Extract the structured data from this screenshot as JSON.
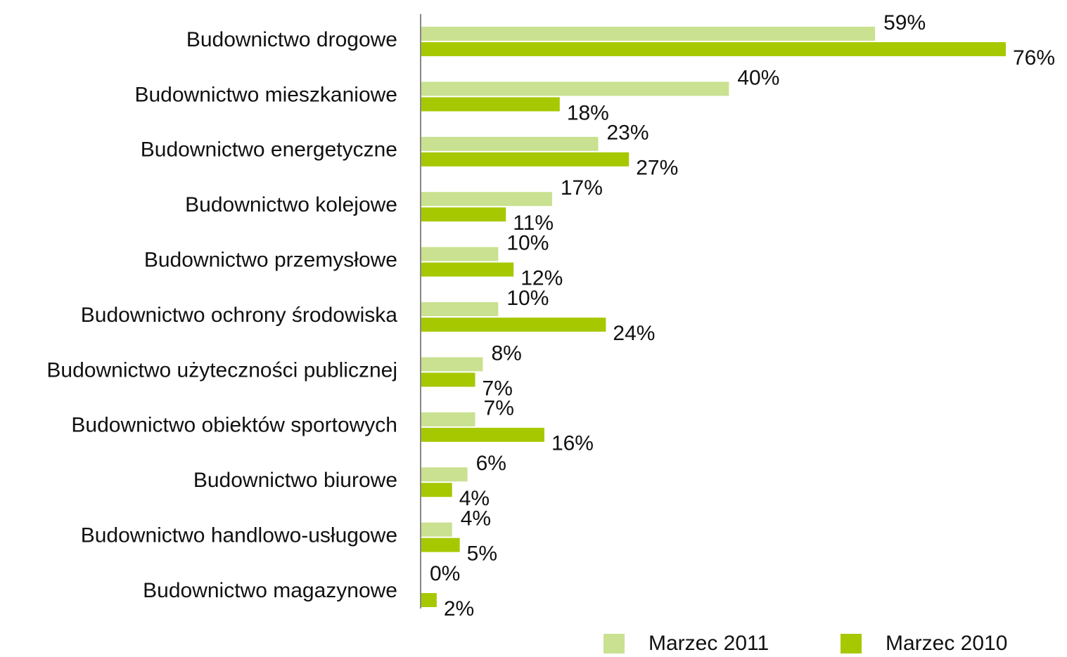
{
  "chart_data": {
    "type": "hbar",
    "categories": [
      "Budownictwo drogowe",
      "Budownictwo mieszkaniowe",
      "Budownictwo energetyczne",
      "Budownictwo kolejowe",
      "Budownictwo przemysłowe",
      "Budownictwo ochrony środowiska",
      "Budownictwo użyteczności publicznej",
      "Budownictwo obiektów sportowych",
      "Budownictwo biurowe",
      "Budownictwo handlowo-usługowe",
      "Budownictwo magazynowe"
    ],
    "series": [
      {
        "name": "Marzec 2011",
        "color": "#c9e190",
        "values": [
          59,
          40,
          23,
          17,
          10,
          10,
          8,
          7,
          6,
          4,
          0
        ],
        "value_labels": [
          "59%",
          "40%",
          "23%",
          "17%",
          "10%",
          "10%",
          "8%",
          "7%",
          "6%",
          "4%",
          "0%"
        ]
      },
      {
        "name": "Marzec 2010",
        "color": "#a6c800",
        "values": [
          76,
          18,
          27,
          11,
          12,
          24,
          7,
          16,
          4,
          5,
          2
        ],
        "value_labels": [
          "76%",
          "18%",
          "27%",
          "11%",
          "12%",
          "24%",
          "7%",
          "16%",
          "4%",
          "5%",
          "2%"
        ]
      }
    ],
    "xlim": [
      0,
      76
    ]
  }
}
